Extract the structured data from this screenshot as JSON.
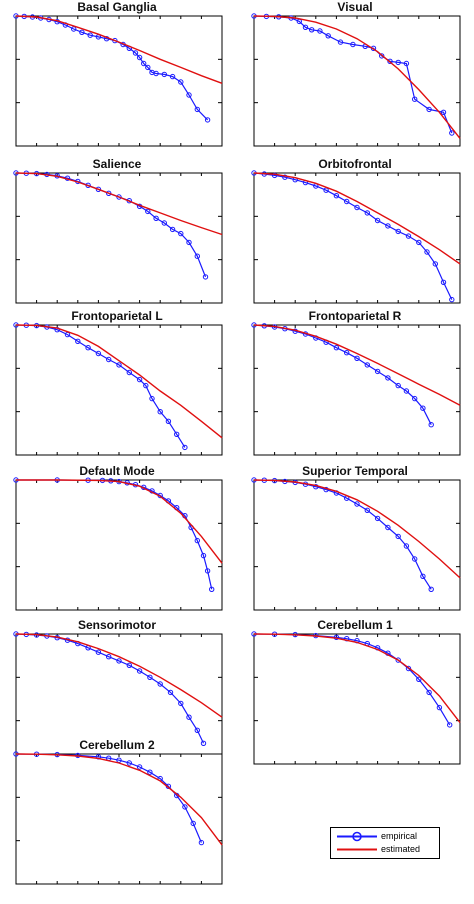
{
  "colors": {
    "empirical": "#1a1aff",
    "estimated": "#e01010",
    "axis": "#000000",
    "grid": "#d9d9d9"
  },
  "legend": {
    "empirical_label": "empirical",
    "estimated_label": "estimated"
  },
  "chart_data": [
    {
      "type": "line",
      "title": "Basal Ganglia",
      "yscale": "log",
      "ylim": [
        0.001,
        1
      ],
      "xlim": [
        0,
        1
      ],
      "series": [
        {
          "name": "empirical",
          "x": [
            0.0,
            0.04,
            0.08,
            0.12,
            0.16,
            0.2,
            0.24,
            0.28,
            0.32,
            0.36,
            0.4,
            0.44,
            0.48,
            0.52,
            0.55,
            0.58,
            0.6,
            0.62,
            0.64,
            0.66,
            0.68,
            0.72,
            0.76,
            0.8,
            0.84,
            0.88,
            0.93
          ],
          "y": [
            1,
            0.98,
            0.95,
            0.9,
            0.83,
            0.74,
            0.62,
            0.5,
            0.42,
            0.36,
            0.33,
            0.3,
            0.27,
            0.22,
            0.18,
            0.14,
            0.11,
            0.08,
            0.065,
            0.05,
            0.047,
            0.045,
            0.04,
            0.03,
            0.015,
            0.007,
            0.004
          ]
        },
        {
          "name": "estimated",
          "x": [
            0.0,
            0.1,
            0.2,
            0.3,
            0.4,
            0.5,
            0.6,
            0.7,
            0.8,
            0.9,
            1.0
          ],
          "y": [
            1,
            0.95,
            0.78,
            0.55,
            0.38,
            0.25,
            0.16,
            0.1,
            0.065,
            0.042,
            0.028
          ]
        }
      ]
    },
    {
      "type": "line",
      "title": "Visual",
      "yscale": "log",
      "ylim": [
        0.001,
        1
      ],
      "xlim": [
        0,
        1
      ],
      "series": [
        {
          "name": "empirical",
          "x": [
            0.0,
            0.06,
            0.12,
            0.18,
            0.22,
            0.25,
            0.28,
            0.32,
            0.36,
            0.42,
            0.48,
            0.54,
            0.58,
            0.62,
            0.66,
            0.7,
            0.74,
            0.78,
            0.85,
            0.92,
            0.96
          ],
          "y": [
            1,
            0.98,
            0.96,
            0.9,
            0.75,
            0.55,
            0.48,
            0.45,
            0.35,
            0.25,
            0.22,
            0.2,
            0.18,
            0.12,
            0.09,
            0.085,
            0.08,
            0.012,
            0.007,
            0.006,
            0.002
          ]
        },
        {
          "name": "estimated",
          "x": [
            0.0,
            0.1,
            0.2,
            0.3,
            0.4,
            0.5,
            0.6,
            0.7,
            0.8,
            0.9,
            1.0
          ],
          "y": [
            1,
            0.98,
            0.9,
            0.72,
            0.5,
            0.3,
            0.15,
            0.06,
            0.02,
            0.006,
            0.0015
          ]
        }
      ]
    },
    {
      "type": "line",
      "title": "Salience",
      "yscale": "log",
      "ylim": [
        0.001,
        1
      ],
      "xlim": [
        0,
        1
      ],
      "series": [
        {
          "name": "empirical",
          "x": [
            0.0,
            0.05,
            0.1,
            0.15,
            0.2,
            0.25,
            0.3,
            0.35,
            0.4,
            0.45,
            0.5,
            0.55,
            0.6,
            0.64,
            0.68,
            0.72,
            0.76,
            0.8,
            0.84,
            0.88,
            0.92
          ],
          "y": [
            1,
            0.99,
            0.97,
            0.93,
            0.86,
            0.76,
            0.64,
            0.52,
            0.42,
            0.34,
            0.28,
            0.23,
            0.17,
            0.13,
            0.09,
            0.07,
            0.05,
            0.04,
            0.025,
            0.012,
            0.004
          ]
        },
        {
          "name": "estimated",
          "x": [
            0.0,
            0.1,
            0.2,
            0.3,
            0.4,
            0.5,
            0.6,
            0.7,
            0.8,
            0.9,
            1.0
          ],
          "y": [
            1,
            0.97,
            0.84,
            0.62,
            0.42,
            0.28,
            0.18,
            0.12,
            0.08,
            0.055,
            0.038
          ]
        }
      ]
    },
    {
      "type": "line",
      "title": "Orbitofrontal",
      "yscale": "log",
      "ylim": [
        0.001,
        1
      ],
      "xlim": [
        0,
        1
      ],
      "series": [
        {
          "name": "empirical",
          "x": [
            0.0,
            0.05,
            0.1,
            0.15,
            0.2,
            0.25,
            0.3,
            0.35,
            0.4,
            0.45,
            0.5,
            0.55,
            0.6,
            0.65,
            0.7,
            0.75,
            0.8,
            0.84,
            0.88,
            0.92,
            0.96
          ],
          "y": [
            1,
            0.95,
            0.88,
            0.8,
            0.7,
            0.6,
            0.5,
            0.4,
            0.3,
            0.22,
            0.16,
            0.12,
            0.08,
            0.06,
            0.045,
            0.035,
            0.025,
            0.015,
            0.008,
            0.003,
            0.0012
          ]
        },
        {
          "name": "estimated",
          "x": [
            0.0,
            0.1,
            0.2,
            0.3,
            0.4,
            0.5,
            0.6,
            0.7,
            0.8,
            0.9,
            1.0
          ],
          "y": [
            1,
            0.94,
            0.78,
            0.58,
            0.38,
            0.22,
            0.12,
            0.065,
            0.034,
            0.017,
            0.008
          ]
        }
      ]
    },
    {
      "type": "line",
      "title": "Frontoparietal L",
      "yscale": "log",
      "ylim": [
        0.001,
        1
      ],
      "xlim": [
        0,
        1
      ],
      "series": [
        {
          "name": "empirical",
          "x": [
            0.0,
            0.05,
            0.1,
            0.15,
            0.2,
            0.25,
            0.3,
            0.35,
            0.4,
            0.45,
            0.5,
            0.55,
            0.6,
            0.63,
            0.66,
            0.7,
            0.74,
            0.78,
            0.82
          ],
          "y": [
            1,
            0.99,
            0.97,
            0.9,
            0.78,
            0.6,
            0.42,
            0.3,
            0.22,
            0.16,
            0.12,
            0.08,
            0.055,
            0.04,
            0.02,
            0.01,
            0.006,
            0.003,
            0.0015
          ]
        },
        {
          "name": "estimated",
          "x": [
            0.0,
            0.1,
            0.2,
            0.3,
            0.4,
            0.5,
            0.6,
            0.7,
            0.8,
            0.9,
            1.0
          ],
          "y": [
            1,
            0.98,
            0.85,
            0.58,
            0.32,
            0.15,
            0.07,
            0.03,
            0.014,
            0.006,
            0.0025
          ]
        }
      ]
    },
    {
      "type": "line",
      "title": "Frontoparietal R",
      "yscale": "log",
      "ylim": [
        0.001,
        1
      ],
      "xlim": [
        0,
        1
      ],
      "series": [
        {
          "name": "empirical",
          "x": [
            0.0,
            0.05,
            0.1,
            0.15,
            0.2,
            0.25,
            0.3,
            0.35,
            0.4,
            0.45,
            0.5,
            0.55,
            0.6,
            0.65,
            0.7,
            0.74,
            0.78,
            0.82,
            0.86
          ],
          "y": [
            1,
            0.96,
            0.9,
            0.82,
            0.72,
            0.62,
            0.5,
            0.4,
            0.3,
            0.23,
            0.17,
            0.12,
            0.085,
            0.06,
            0.04,
            0.03,
            0.02,
            0.012,
            0.005
          ]
        },
        {
          "name": "estimated",
          "x": [
            0.0,
            0.1,
            0.2,
            0.3,
            0.4,
            0.5,
            0.6,
            0.7,
            0.8,
            0.9,
            1.0
          ],
          "y": [
            1,
            0.93,
            0.76,
            0.55,
            0.36,
            0.22,
            0.13,
            0.075,
            0.043,
            0.025,
            0.014
          ]
        }
      ]
    },
    {
      "type": "line",
      "title": "Default Mode",
      "yscale": "log",
      "ylim": [
        0.001,
        1
      ],
      "xlim": [
        0,
        1
      ],
      "series": [
        {
          "name": "empirical",
          "x": [
            0.0,
            0.2,
            0.35,
            0.42,
            0.46,
            0.5,
            0.54,
            0.58,
            0.62,
            0.66,
            0.7,
            0.74,
            0.78,
            0.82,
            0.85,
            0.88,
            0.91,
            0.93,
            0.95
          ],
          "y": [
            1,
            1,
            0.99,
            0.98,
            0.96,
            0.92,
            0.86,
            0.78,
            0.68,
            0.56,
            0.44,
            0.33,
            0.23,
            0.15,
            0.08,
            0.04,
            0.018,
            0.008,
            0.003
          ]
        },
        {
          "name": "estimated",
          "x": [
            0.0,
            0.2,
            0.4,
            0.5,
            0.6,
            0.7,
            0.8,
            0.9,
            1.0
          ],
          "y": [
            1,
            1,
            0.98,
            0.92,
            0.72,
            0.42,
            0.17,
            0.05,
            0.012
          ]
        }
      ]
    },
    {
      "type": "line",
      "title": "Superior Temporal",
      "yscale": "log",
      "ylim": [
        0.001,
        1
      ],
      "xlim": [
        0,
        1
      ],
      "series": [
        {
          "name": "empirical",
          "x": [
            0.0,
            0.05,
            0.1,
            0.15,
            0.2,
            0.25,
            0.3,
            0.35,
            0.4,
            0.45,
            0.5,
            0.55,
            0.6,
            0.65,
            0.7,
            0.74,
            0.78,
            0.82,
            0.86
          ],
          "y": [
            1,
            0.99,
            0.97,
            0.93,
            0.88,
            0.8,
            0.7,
            0.6,
            0.5,
            0.38,
            0.28,
            0.2,
            0.13,
            0.08,
            0.05,
            0.03,
            0.015,
            0.006,
            0.003
          ]
        },
        {
          "name": "estimated",
          "x": [
            0.0,
            0.1,
            0.2,
            0.3,
            0.4,
            0.5,
            0.6,
            0.7,
            0.8,
            0.9,
            1.0
          ],
          "y": [
            1,
            0.98,
            0.9,
            0.75,
            0.55,
            0.35,
            0.19,
            0.09,
            0.038,
            0.015,
            0.0055
          ]
        }
      ]
    },
    {
      "type": "line",
      "title": "Sensorimotor",
      "yscale": "log",
      "ylim": [
        0.001,
        1
      ],
      "xlim": [
        0,
        1
      ],
      "series": [
        {
          "name": "empirical",
          "x": [
            0.0,
            0.05,
            0.1,
            0.15,
            0.2,
            0.25,
            0.3,
            0.35,
            0.4,
            0.45,
            0.5,
            0.55,
            0.6,
            0.65,
            0.7,
            0.75,
            0.8,
            0.84,
            0.88,
            0.91
          ],
          "y": [
            1,
            0.98,
            0.95,
            0.9,
            0.82,
            0.72,
            0.6,
            0.48,
            0.38,
            0.3,
            0.24,
            0.19,
            0.14,
            0.1,
            0.07,
            0.045,
            0.025,
            0.012,
            0.006,
            0.003
          ]
        },
        {
          "name": "estimated",
          "x": [
            0.0,
            0.1,
            0.2,
            0.3,
            0.4,
            0.5,
            0.6,
            0.7,
            0.8,
            0.9,
            1.0
          ],
          "y": [
            1,
            0.97,
            0.85,
            0.66,
            0.46,
            0.3,
            0.18,
            0.1,
            0.052,
            0.026,
            0.012
          ]
        }
      ]
    },
    {
      "type": "line",
      "title": "Cerebellum 1",
      "yscale": "log",
      "ylim": [
        0.001,
        1
      ],
      "xlim": [
        0,
        1
      ],
      "series": [
        {
          "name": "empirical",
          "x": [
            0.0,
            0.1,
            0.2,
            0.3,
            0.4,
            0.45,
            0.5,
            0.55,
            0.6,
            0.65,
            0.7,
            0.75,
            0.8,
            0.85,
            0.9,
            0.95
          ],
          "y": [
            1,
            0.99,
            0.97,
            0.92,
            0.84,
            0.78,
            0.7,
            0.6,
            0.48,
            0.36,
            0.25,
            0.16,
            0.09,
            0.045,
            0.02,
            0.008
          ]
        },
        {
          "name": "estimated",
          "x": [
            0.0,
            0.1,
            0.2,
            0.3,
            0.4,
            0.5,
            0.6,
            0.7,
            0.8,
            0.9,
            1.0
          ],
          "y": [
            1,
            0.99,
            0.96,
            0.9,
            0.8,
            0.64,
            0.44,
            0.25,
            0.11,
            0.037,
            0.009
          ]
        }
      ]
    },
    {
      "type": "line",
      "title": "Cerebellum 2",
      "yscale": "log",
      "ylim": [
        0.001,
        1
      ],
      "xlim": [
        0,
        1
      ],
      "series": [
        {
          "name": "empirical",
          "x": [
            0.0,
            0.1,
            0.2,
            0.3,
            0.4,
            0.45,
            0.5,
            0.55,
            0.6,
            0.65,
            0.7,
            0.74,
            0.78,
            0.82,
            0.86,
            0.9
          ],
          "y": [
            1,
            0.99,
            0.97,
            0.93,
            0.86,
            0.8,
            0.72,
            0.62,
            0.5,
            0.38,
            0.27,
            0.18,
            0.11,
            0.06,
            0.025,
            0.009
          ]
        },
        {
          "name": "estimated",
          "x": [
            0.0,
            0.1,
            0.2,
            0.3,
            0.4,
            0.5,
            0.6,
            0.7,
            0.8,
            0.9,
            1.0
          ],
          "y": [
            1,
            0.99,
            0.96,
            0.9,
            0.79,
            0.62,
            0.42,
            0.24,
            0.1,
            0.034,
            0.008
          ]
        }
      ]
    }
  ]
}
